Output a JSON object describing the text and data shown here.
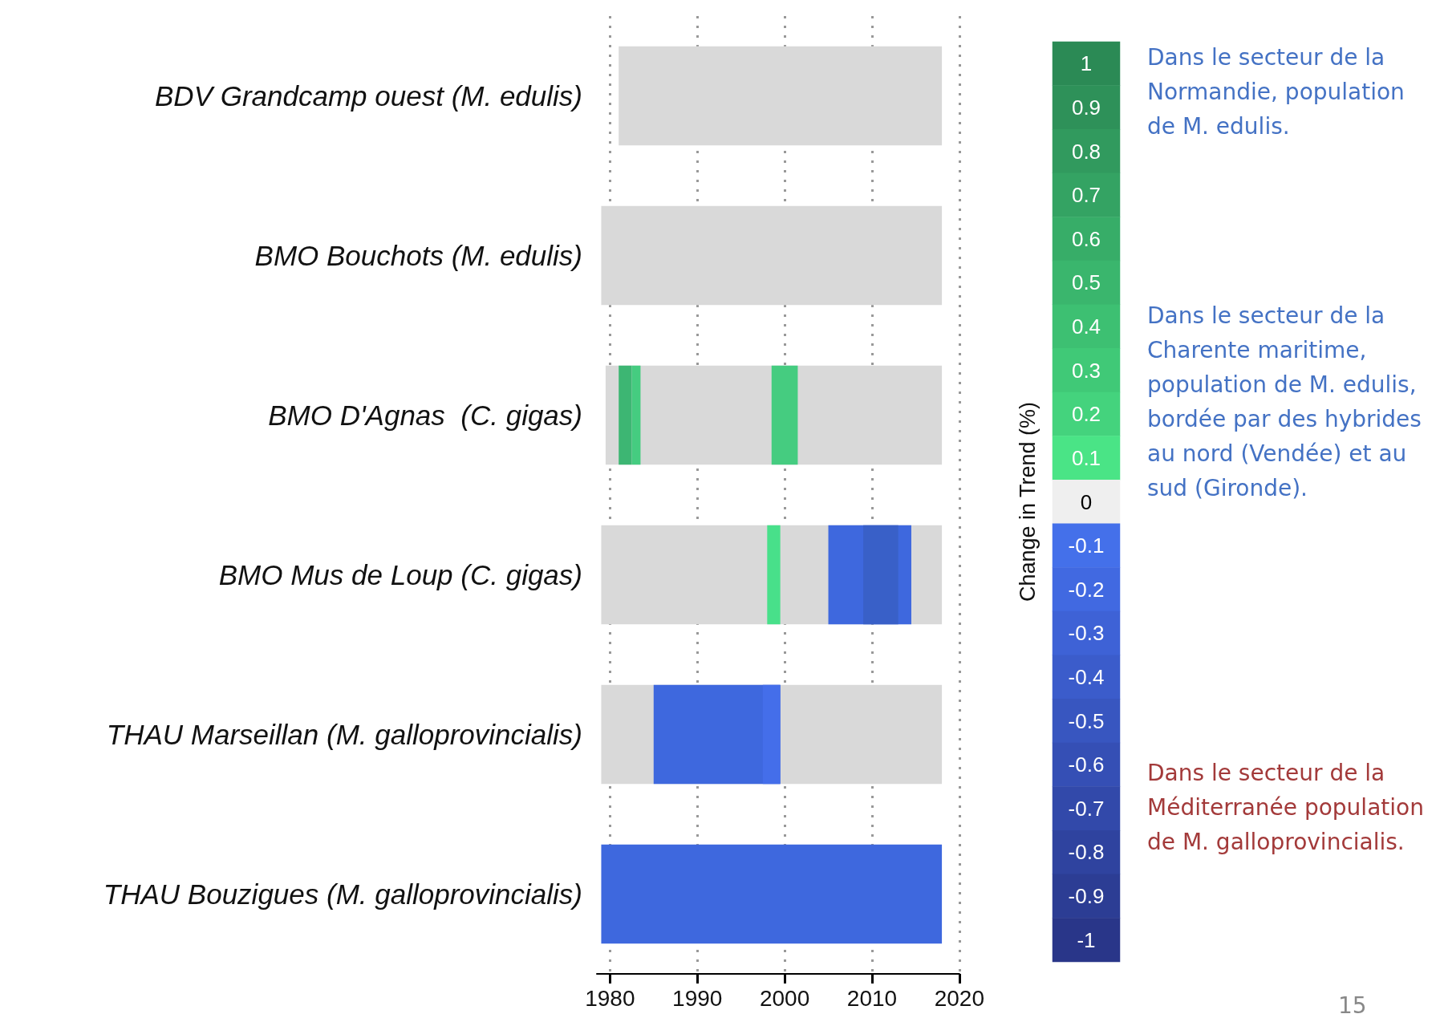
{
  "chart_data": [
    {
      "type": "bar",
      "orientation": "horizontal",
      "categories": [
        "BDV Grandcamp ouest (M. edulis)",
        "BMO Bouchots (M. edulis)",
        "BMO D'Agnas  (C. gigas)",
        "BMO Mus de Loup (C. gigas)",
        "THAU Marseillan (M. galloprovincialis)",
        "THAU Bouzigues (M. galloprovincialis)"
      ],
      "series": [
        {
          "color": "#d9d9d9",
          "base": [
            1981,
            1979,
            1979.5,
            1979,
            1979,
            null
          ],
          "values": [
            37,
            39,
            38.5,
            39,
            39,
            null
          ]
        },
        {
          "color": "#3db673",
          "base": [
            null,
            null,
            1981,
            null,
            null,
            null
          ],
          "values": [
            null,
            null,
            1.5,
            null,
            null,
            null
          ]
        },
        {
          "color": "#45cc80",
          "base": [
            null,
            null,
            1982.5,
            null,
            null,
            null
          ],
          "values": [
            null,
            null,
            1,
            null,
            null,
            null
          ]
        },
        {
          "color": "#45cc80",
          "base": [
            null,
            null,
            1998.5,
            null,
            null,
            null
          ],
          "values": [
            null,
            null,
            3,
            null,
            null,
            null
          ]
        },
        {
          "color": "#48e08a",
          "base": [
            null,
            null,
            null,
            1998,
            null,
            null
          ],
          "values": [
            null,
            null,
            null,
            1.5,
            null,
            null
          ]
        },
        {
          "color": "#3e68de",
          "base": [
            null,
            null,
            null,
            2005,
            1985,
            1979
          ],
          "values": [
            null,
            null,
            null,
            9.5,
            14.5,
            39
          ]
        },
        {
          "color": "#3960c8",
          "base": [
            null,
            null,
            null,
            2009,
            null,
            null
          ],
          "values": [
            null,
            null,
            null,
            4,
            null,
            null
          ]
        },
        {
          "color": "#446eea",
          "base": [
            null,
            null,
            null,
            null,
            1997.5,
            null
          ],
          "values": [
            null,
            null,
            null,
            null,
            2,
            null
          ]
        }
      ],
      "xlim": [
        1978.5,
        2020
      ],
      "xticks": [
        1980,
        1990,
        2000,
        2010,
        2020
      ],
      "grid": "x"
    },
    {
      "type": "heatmap",
      "ylabel": "Change in Trend (%)",
      "categories": [
        null
      ],
      "y_categories": [
        null,
        null,
        null,
        null,
        null,
        null,
        null,
        null,
        null,
        null,
        null,
        null,
        null,
        null,
        null,
        null,
        null,
        null,
        null,
        null,
        null
      ],
      "cells": [
        [
          1
        ],
        [
          0.9
        ],
        [
          0.8
        ],
        [
          0.7
        ],
        [
          0.6
        ],
        [
          0.5
        ],
        [
          0.4
        ],
        [
          0.3
        ],
        [
          0.2
        ],
        [
          0.1
        ],
        [
          0
        ],
        [
          -0.1
        ],
        [
          -0.2
        ],
        [
          -0.3
        ],
        [
          -0.4
        ],
        [
          -0.5
        ],
        [
          -0.6
        ],
        [
          -0.7
        ],
        [
          -0.8
        ],
        [
          -0.9
        ],
        [
          -1
        ]
      ],
      "colors": [
        "#2b8a55",
        "#2e9159",
        "#319a5e",
        "#34a363",
        "#37ad68",
        "#3ab66d",
        "#3dc072",
        "#40c977",
        "#44d37d",
        "#4ae486",
        "#efefef",
        "#4470ea",
        "#4169e1",
        "#3e62d6",
        "#3b5ccb",
        "#3856c0",
        "#354fb5",
        "#3249aa",
        "#2f439f",
        "#2c3d94",
        "#293689"
      ],
      "data_labels": true,
      "annotations": [
        "Dans le secteur de la Normandie, population de M. edulis.",
        "Dans le secteur de la Charente maritime, population de M. edulis, bordée par des hybrides au nord (Vendée) et au sud (Gironde).",
        "Dans le secteur de la Méditerranée population de M. galloprovincialis.",
        "15"
      ]
    }
  ]
}
